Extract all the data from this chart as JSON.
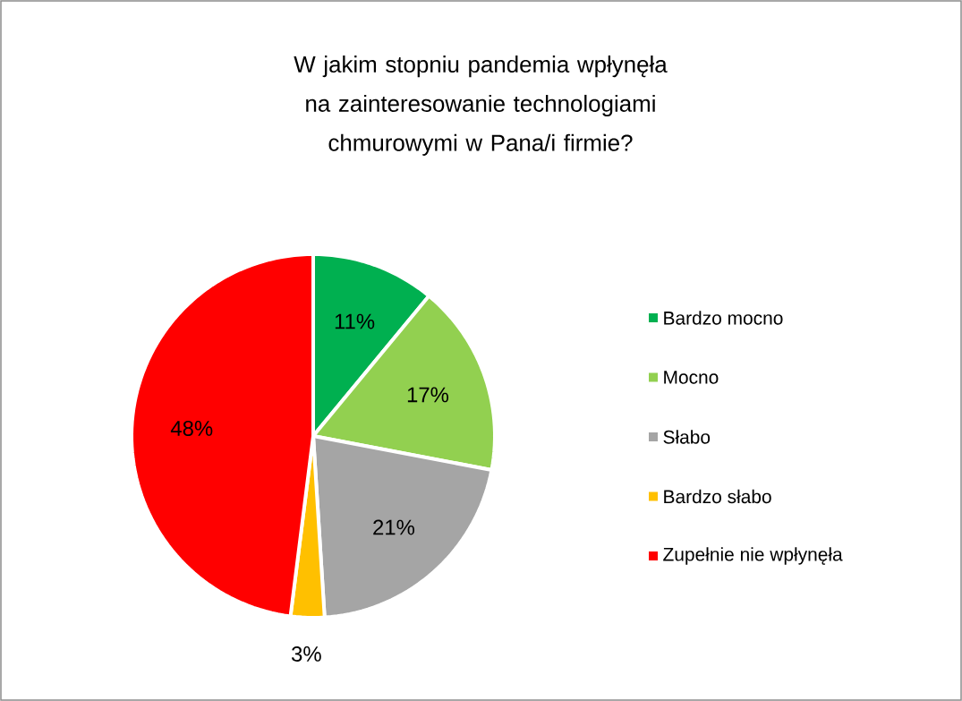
{
  "chart_data": {
    "type": "pie",
    "title": "W jakim stopniu pandemia wpłynęła na zainteresowanie technologiami chmurowymi w Pana/i firmie?",
    "categories": [
      "Bardzo mocno",
      "Mocno",
      "Słabo",
      "Bardzo słabo",
      "Zupełnie nie wpłynęła"
    ],
    "values": [
      11,
      17,
      21,
      3,
      48
    ],
    "colors": [
      "#00b050",
      "#92d050",
      "#a5a5a5",
      "#ffc000",
      "#ff0000"
    ],
    "value_labels": [
      "11%",
      "17%",
      "21%",
      "3%",
      "48%"
    ],
    "legend": "right"
  }
}
